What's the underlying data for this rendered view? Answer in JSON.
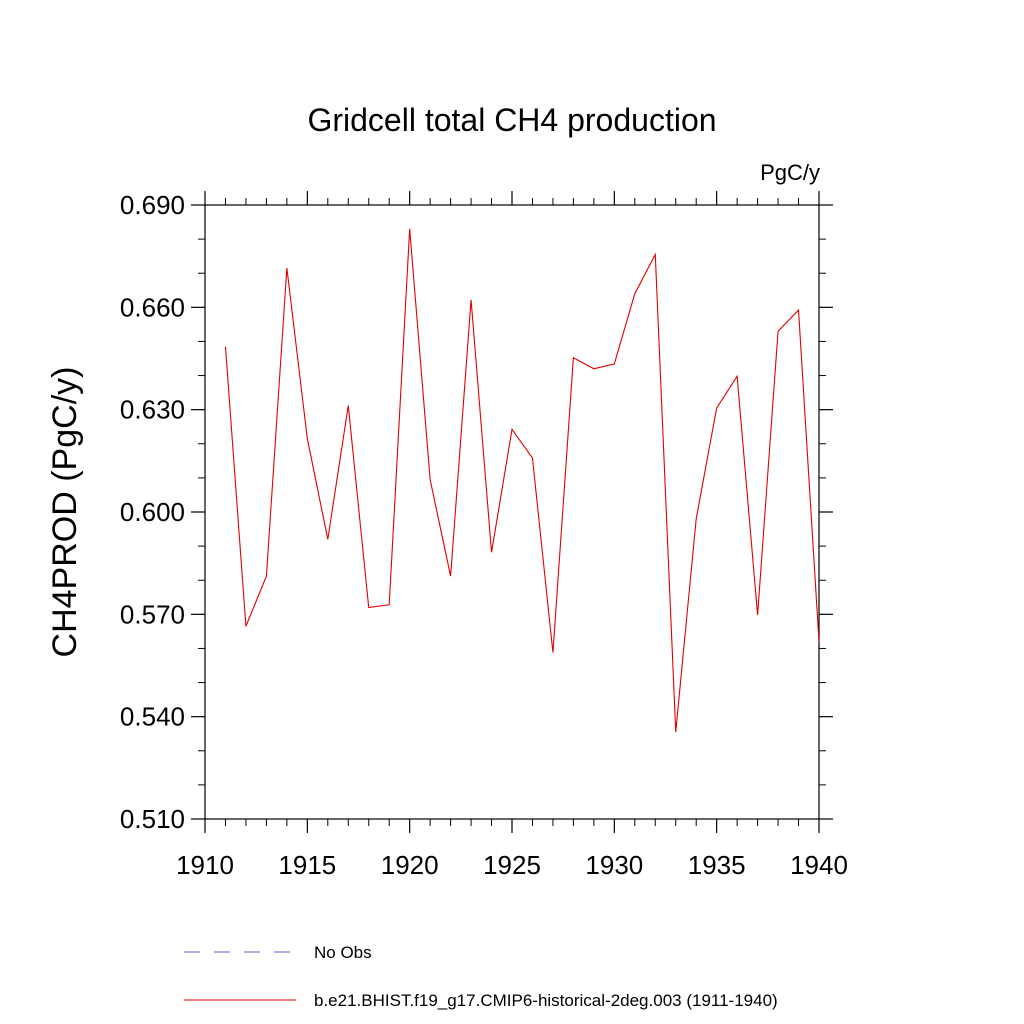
{
  "chart_data": {
    "type": "line",
    "title": "Gridcell total CH4 production",
    "units_label": "PgC/y",
    "xlabel": "",
    "ylabel": "CH4PROD  (PgC/y)",
    "xlim": [
      1910,
      1940
    ],
    "ylim": [
      0.51,
      0.69
    ],
    "x_ticks": [
      1910,
      1915,
      1920,
      1925,
      1930,
      1935,
      1940
    ],
    "x_tick_labels": [
      "1910",
      "1915",
      "1920",
      "1925",
      "1930",
      "1935",
      "1940"
    ],
    "y_ticks": [
      0.51,
      0.54,
      0.57,
      0.6,
      0.63,
      0.66,
      0.69
    ],
    "y_tick_labels": [
      "0.510",
      "0.540",
      "0.570",
      "0.600",
      "0.630",
      "0.660",
      "0.690"
    ],
    "grid": false,
    "legend_placement": "bottom",
    "series": [
      {
        "name": "No Obs",
        "color": "#6a5acd",
        "dash": "dashed",
        "x": [],
        "y": []
      },
      {
        "name": "b.e21.BHIST.f19_g17.CMIP6-historical-2deg.003 (1911-1940)",
        "color": "#e00000",
        "dash": "solid",
        "x": [
          1911,
          1912,
          1913,
          1914,
          1915,
          1916,
          1917,
          1918,
          1919,
          1920,
          1921,
          1922,
          1923,
          1924,
          1925,
          1926,
          1927,
          1928,
          1929,
          1930,
          1931,
          1932,
          1933,
          1934,
          1935,
          1936,
          1937,
          1938,
          1939,
          1940
        ],
        "y": [
          0.6485,
          0.5665,
          0.5812,
          0.6715,
          0.6215,
          0.592,
          0.6312,
          0.572,
          0.5728,
          0.683,
          0.6095,
          0.5812,
          0.6622,
          0.5882,
          0.6242,
          0.6158,
          0.5588,
          0.6452,
          0.642,
          0.6434,
          0.664,
          0.6755,
          0.5355,
          0.598,
          0.6305,
          0.6398,
          0.5698,
          0.653,
          0.6592,
          0.562
        ]
      }
    ]
  }
}
